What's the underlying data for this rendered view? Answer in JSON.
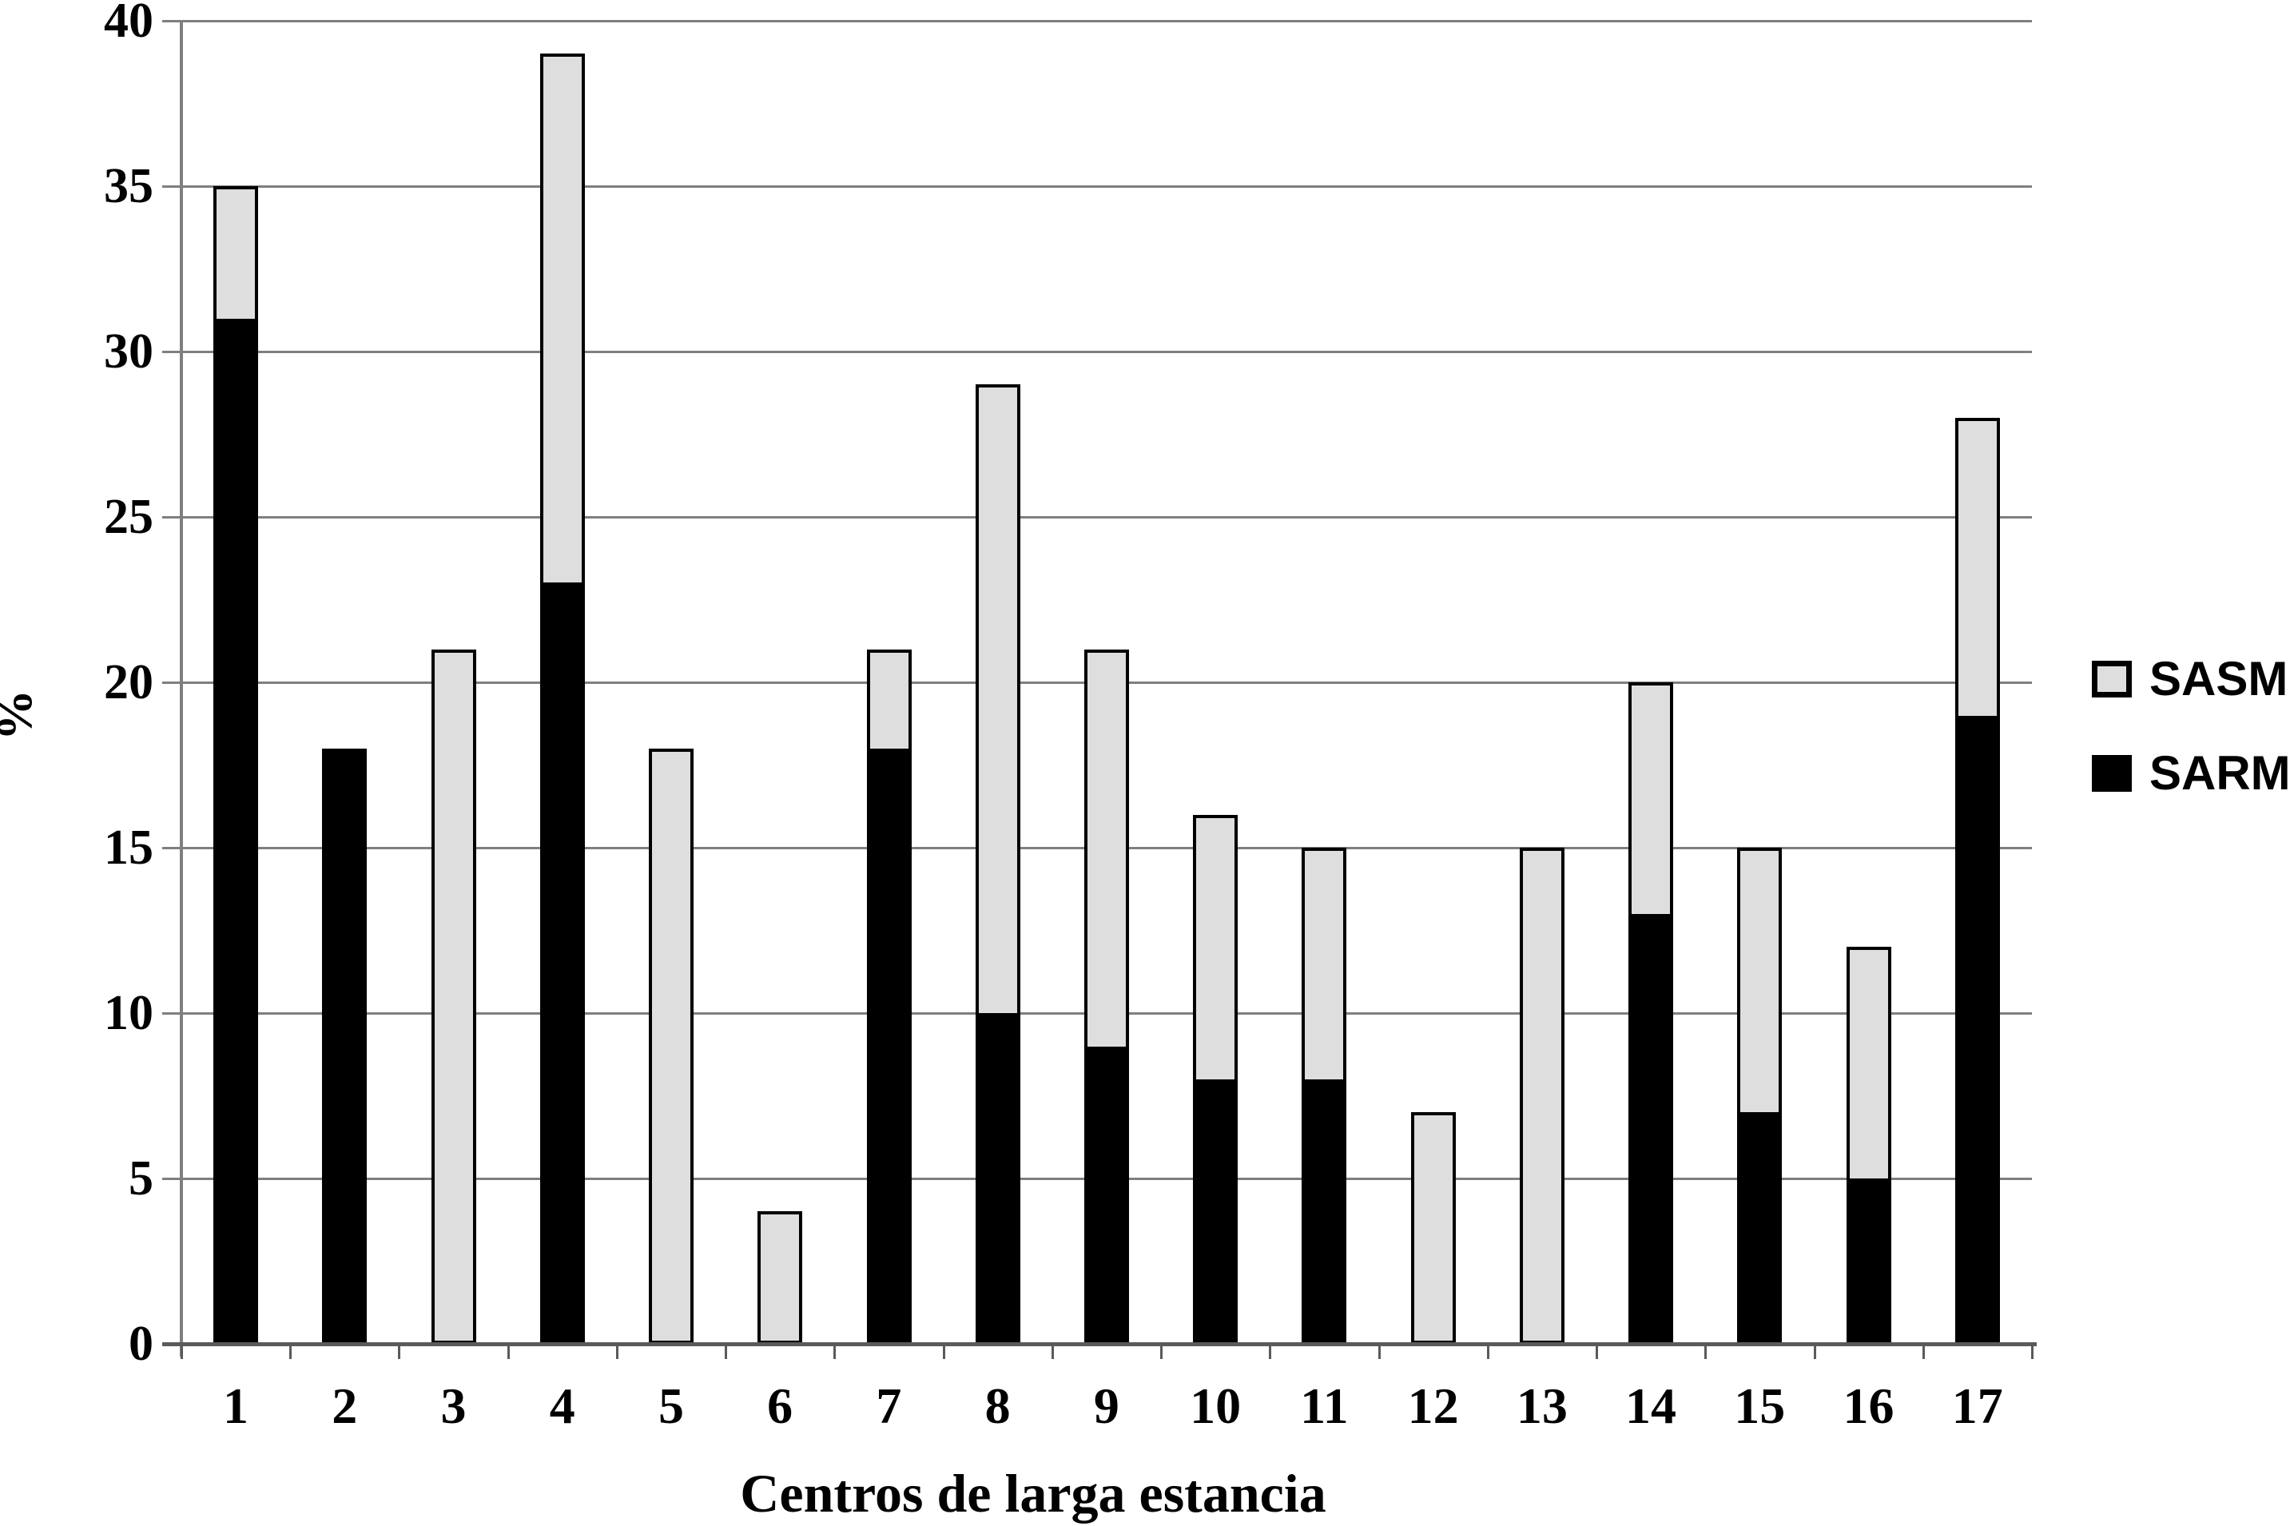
{
  "figure": {
    "background": "#ffffff"
  },
  "y_axis": {
    "label": "%",
    "ticks": [
      0,
      5,
      10,
      15,
      20,
      25,
      30,
      35,
      40
    ],
    "max": 40
  },
  "x_axis": {
    "title": "Centros de larga estancia",
    "categories": [
      "1",
      "2",
      "3",
      "4",
      "5",
      "6",
      "7",
      "8",
      "9",
      "10",
      "11",
      "12",
      "13",
      "14",
      "15",
      "16",
      "17"
    ]
  },
  "legend": {
    "items": [
      {
        "label": "SASM",
        "color": "#dedede",
        "border": "#000000"
      },
      {
        "label": "SARM",
        "color": "#000000",
        "border": "#000000"
      }
    ]
  },
  "colors": {
    "sarm_fill": "#000000",
    "sasm_fill": "#dedede",
    "bar_border": "#000000",
    "gridline": "#7f7f7f",
    "axis": "#5a5a5a"
  },
  "chart_data": {
    "type": "bar",
    "stacked": true,
    "title": "",
    "xlabel": "Centros de larga estancia",
    "ylabel": "%",
    "ylim": [
      0,
      40
    ],
    "grid": true,
    "legend_position": "right",
    "categories": [
      "1",
      "2",
      "3",
      "4",
      "5",
      "6",
      "7",
      "8",
      "9",
      "10",
      "11",
      "12",
      "13",
      "14",
      "15",
      "16",
      "17"
    ],
    "series": [
      {
        "name": "SARM",
        "color": "#000000",
        "values": [
          31,
          18,
          0,
          23,
          0,
          0,
          18,
          10,
          9,
          8,
          8,
          0,
          0,
          13,
          7,
          5,
          19
        ]
      },
      {
        "name": "SASM",
        "color": "#dedede",
        "values": [
          4,
          0,
          21,
          16,
          18,
          4,
          3,
          19,
          12,
          8,
          7,
          7,
          15,
          7,
          8,
          7,
          9
        ]
      }
    ],
    "totals": [
      35,
      18,
      21,
      39,
      18,
      4,
      21,
      29,
      21,
      16,
      15,
      7,
      15,
      20,
      15,
      12,
      28
    ]
  }
}
